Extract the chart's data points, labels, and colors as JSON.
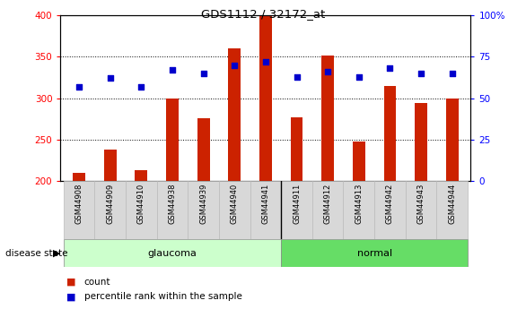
{
  "title": "GDS1112 / 32172_at",
  "categories": [
    "GSM44908",
    "GSM44909",
    "GSM44910",
    "GSM44938",
    "GSM44939",
    "GSM44940",
    "GSM44941",
    "GSM44911",
    "GSM44912",
    "GSM44913",
    "GSM44942",
    "GSM44943",
    "GSM44944"
  ],
  "group_labels": [
    "glaucoma",
    "normal"
  ],
  "group_split": 7,
  "bar_values": [
    210,
    238,
    213,
    299,
    276,
    360,
    400,
    277,
    352,
    248,
    315,
    294,
    299
  ],
  "dot_values": [
    57,
    62,
    57,
    67,
    65,
    70,
    72,
    63,
    66,
    63,
    68,
    65,
    65
  ],
  "bar_color": "#cc2200",
  "dot_color": "#0000cc",
  "ymin": 200,
  "ymax": 400,
  "yticks_left": [
    200,
    250,
    300,
    350,
    400
  ],
  "yticks_right": [
    0,
    25,
    50,
    75,
    100
  ],
  "glaucoma_bg_light": "#ccffcc",
  "normal_bg_light": "#66dd66",
  "xlabel_bg": "#d0d0d0",
  "legend_count_label": "count",
  "legend_pct_label": "percentile rank within the sample",
  "disease_state_label": "disease state"
}
